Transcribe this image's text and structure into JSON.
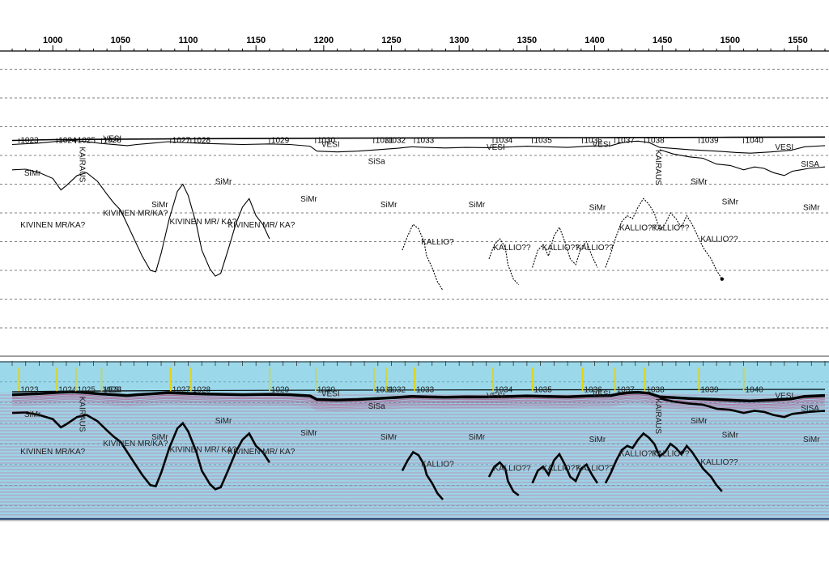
{
  "chart_data": {
    "type": "line",
    "title": "",
    "xlabel": "",
    "ylabel": "",
    "xlim": [
      970,
      1570
    ],
    "x_ticks": [
      1000,
      1050,
      1100,
      1150,
      1200,
      1250,
      1300,
      1350,
      1400,
      1450,
      1500,
      1550
    ],
    "x_tick_labels": [
      "1000",
      "1050",
      "1100",
      "1150",
      "1200",
      "1250",
      "1300",
      "1350",
      "1400",
      "1450",
      "1500",
      "1550"
    ],
    "grid": "horizontal dashed",
    "colors": {
      "line": "#000000",
      "grid": "#555555",
      "seismic_bg": "#9ad8ea",
      "marker": "#e8d400",
      "reflector": "#b0306a"
    },
    "fix_points": [
      {
        "x": 975,
        "label": "1023"
      },
      {
        "x": 1003,
        "label": "1024"
      },
      {
        "x": 1017,
        "label": "1025"
      },
      {
        "x": 1036,
        "label": "1026"
      },
      {
        "x": 1087,
        "label": "1027"
      },
      {
        "x": 1102,
        "label": "1028"
      },
      {
        "x": 1160,
        "label": "1029"
      },
      {
        "x": 1194,
        "label": "1030"
      },
      {
        "x": 1237,
        "label": "1031"
      },
      {
        "x": 1246,
        "label": "1032"
      },
      {
        "x": 1267,
        "label": "1033"
      },
      {
        "x": 1325,
        "label": "1034"
      },
      {
        "x": 1354,
        "label": "1035"
      },
      {
        "x": 1391,
        "label": "1036"
      },
      {
        "x": 1415,
        "label": "1037"
      },
      {
        "x": 1437,
        "label": "1038"
      },
      {
        "x": 1477,
        "label": "1039"
      },
      {
        "x": 1510,
        "label": "1040"
      }
    ],
    "annotations": [
      {
        "x": 985,
        "row": 4.7,
        "text": "SiMr"
      },
      {
        "x": 1020,
        "row": 3.7,
        "text": "KAIRAUS",
        "vertical": true
      },
      {
        "x": 1044,
        "row": 3.5,
        "text": "VESI"
      },
      {
        "x": 1079,
        "row": 5.8,
        "text": "SiMr"
      },
      {
        "x": 1000,
        "row": 6.5,
        "text": "KIVINEN MR/KA?"
      },
      {
        "x": 1061,
        "row": 6.1,
        "text": "KIVINEN MR/KA?"
      },
      {
        "x": 1111,
        "row": 6.4,
        "text": "KIVINEN MR/ KA?"
      },
      {
        "x": 1126,
        "row": 5.0,
        "text": "SiMr"
      },
      {
        "x": 1154,
        "row": 6.5,
        "text": "KIVINEN MR/ KA?"
      },
      {
        "x": 1189,
        "row": 5.6,
        "text": "SiMr"
      },
      {
        "x": 1205,
        "row": 3.7,
        "text": "VESI"
      },
      {
        "x": 1239,
        "row": 4.3,
        "text": "SiSa"
      },
      {
        "x": 1248,
        "row": 5.8,
        "text": "SiMr"
      },
      {
        "x": 1327,
        "row": 3.8,
        "text": "VESI"
      },
      {
        "x": 1313,
        "row": 5.8,
        "text": "SiMr"
      },
      {
        "x": 1284,
        "row": 7.1,
        "text": "KALLIO?"
      },
      {
        "x": 1339,
        "row": 7.3,
        "text": "KALLIO??"
      },
      {
        "x": 1375,
        "row": 7.3,
        "text": "KALLIO??"
      },
      {
        "x": 1400,
        "row": 7.3,
        "text": "KALLIO??"
      },
      {
        "x": 1405,
        "row": 3.7,
        "text": "VESI"
      },
      {
        "x": 1402,
        "row": 5.9,
        "text": "SiMr"
      },
      {
        "x": 1445,
        "row": 3.8,
        "text": "KAIRAUS",
        "vertical": true
      },
      {
        "x": 1432,
        "row": 6.6,
        "text": "KALLIO??"
      },
      {
        "x": 1456,
        "row": 6.6,
        "text": "KALLIO??"
      },
      {
        "x": 1477,
        "row": 5.0,
        "text": "SiMr"
      },
      {
        "x": 1492,
        "row": 7.0,
        "text": "KALLIO??"
      },
      {
        "x": 1500,
        "row": 5.7,
        "text": "SiMr"
      },
      {
        "x": 1540,
        "row": 3.8,
        "text": "VESI"
      },
      {
        "x": 1559,
        "row": 4.4,
        "text": "SISA"
      },
      {
        "x": 1560,
        "row": 5.9,
        "text": "SiMr"
      }
    ],
    "series": [
      {
        "id": "surface",
        "points": [
          [
            970,
            3.48
          ],
          [
            1000,
            3.45
          ],
          [
            1100,
            3.42
          ],
          [
            1200,
            3.4
          ],
          [
            1300,
            3.39
          ],
          [
            1400,
            3.38
          ],
          [
            1500,
            3.37
          ],
          [
            1570,
            3.36
          ]
        ]
      },
      {
        "id": "seabed",
        "points": [
          [
            970,
            3.62
          ],
          [
            990,
            3.57
          ],
          [
            1005,
            3.5
          ],
          [
            1015,
            3.48
          ],
          [
            1025,
            3.52
          ],
          [
            1035,
            3.58
          ],
          [
            1048,
            3.63
          ],
          [
            1055,
            3.66
          ],
          [
            1062,
            3.62
          ],
          [
            1072,
            3.58
          ],
          [
            1085,
            3.52
          ],
          [
            1095,
            3.55
          ],
          [
            1110,
            3.58
          ],
          [
            1125,
            3.6
          ],
          [
            1140,
            3.62
          ],
          [
            1160,
            3.6
          ],
          [
            1175,
            3.62
          ],
          [
            1190,
            3.68
          ],
          [
            1195,
            3.85
          ],
          [
            1210,
            3.88
          ],
          [
            1225,
            3.85
          ],
          [
            1240,
            3.8
          ],
          [
            1255,
            3.75
          ],
          [
            1265,
            3.7
          ],
          [
            1275,
            3.72
          ],
          [
            1290,
            3.74
          ],
          [
            1305,
            3.72
          ],
          [
            1320,
            3.73
          ],
          [
            1335,
            3.71
          ],
          [
            1350,
            3.68
          ],
          [
            1365,
            3.7
          ],
          [
            1380,
            3.72
          ],
          [
            1395,
            3.68
          ],
          [
            1412,
            3.66
          ],
          [
            1418,
            3.58
          ],
          [
            1425,
            3.52
          ],
          [
            1432,
            3.5
          ],
          [
            1440,
            3.55
          ],
          [
            1448,
            3.72
          ],
          [
            1470,
            3.8
          ],
          [
            1490,
            3.85
          ],
          [
            1505,
            3.9
          ],
          [
            1515,
            3.92
          ],
          [
            1530,
            3.88
          ],
          [
            1545,
            3.82
          ],
          [
            1555,
            3.7
          ],
          [
            1570,
            3.66
          ]
        ]
      },
      {
        "id": "silt_base_west",
        "points": [
          [
            970,
            4.5
          ],
          [
            980,
            4.48
          ],
          [
            990,
            4.6
          ],
          [
            1000,
            4.8
          ],
          [
            1006,
            5.2
          ],
          [
            1010,
            5.05
          ],
          [
            1018,
            4.7
          ],
          [
            1025,
            4.6
          ],
          [
            1033,
            4.9
          ],
          [
            1040,
            5.35
          ],
          [
            1045,
            5.65
          ],
          [
            1050,
            5.9
          ],
          [
            1054,
            6.3
          ],
          [
            1060,
            6.9
          ],
          [
            1066,
            7.5
          ],
          [
            1072,
            8.0
          ],
          [
            1076,
            8.05
          ],
          [
            1080,
            7.4
          ],
          [
            1086,
            6.2
          ],
          [
            1092,
            5.25
          ],
          [
            1096,
            5.0
          ],
          [
            1100,
            5.4
          ],
          [
            1106,
            6.4
          ],
          [
            1110,
            7.3
          ],
          [
            1116,
            7.95
          ],
          [
            1120,
            8.2
          ],
          [
            1124,
            8.1
          ],
          [
            1130,
            7.2
          ],
          [
            1135,
            6.4
          ],
          [
            1140,
            5.8
          ],
          [
            1145,
            5.5
          ],
          [
            1150,
            6.1
          ],
          [
            1155,
            6.4
          ],
          [
            1160,
            6.9
          ]
        ]
      },
      {
        "id": "bedrock_1",
        "points": [
          [
            1258,
            7.3
          ],
          [
            1262,
            6.8
          ],
          [
            1266,
            6.4
          ],
          [
            1270,
            6.55
          ],
          [
            1274,
            7.0
          ],
          [
            1276,
            7.5
          ],
          [
            1280,
            7.9
          ],
          [
            1284,
            8.4
          ],
          [
            1288,
            8.7
          ]
        ]
      },
      {
        "id": "bedrock_2",
        "points": [
          [
            1322,
            7.6
          ],
          [
            1326,
            7.1
          ],
          [
            1330,
            6.9
          ],
          [
            1334,
            7.2
          ],
          [
            1336,
            7.8
          ],
          [
            1340,
            8.3
          ],
          [
            1344,
            8.5
          ]
        ]
      },
      {
        "id": "bedrock_3",
        "points": [
          [
            1354,
            7.9
          ],
          [
            1358,
            7.3
          ],
          [
            1362,
            7.1
          ],
          [
            1366,
            7.5
          ],
          [
            1370,
            6.8
          ],
          [
            1374,
            6.5
          ],
          [
            1378,
            7.0
          ],
          [
            1382,
            7.6
          ],
          [
            1386,
            7.8
          ],
          [
            1390,
            7.2
          ],
          [
            1394,
            7.0
          ],
          [
            1398,
            7.5
          ],
          [
            1402,
            7.9
          ]
        ]
      },
      {
        "id": "bedrock_4",
        "points": [
          [
            1408,
            7.9
          ],
          [
            1412,
            7.4
          ],
          [
            1416,
            6.8
          ],
          [
            1420,
            6.3
          ],
          [
            1424,
            6.1
          ],
          [
            1428,
            6.2
          ],
          [
            1432,
            5.8
          ],
          [
            1436,
            5.5
          ],
          [
            1440,
            5.7
          ],
          [
            1444,
            6.0
          ],
          [
            1448,
            6.6
          ],
          [
            1452,
            6.4
          ],
          [
            1456,
            6.0
          ],
          [
            1460,
            6.2
          ],
          [
            1464,
            6.5
          ],
          [
            1468,
            6.1
          ],
          [
            1472,
            6.4
          ],
          [
            1476,
            6.8
          ],
          [
            1480,
            7.2
          ],
          [
            1486,
            7.6
          ],
          [
            1490,
            8.0
          ],
          [
            1494,
            8.3
          ]
        ]
      },
      {
        "id": "silt_base_east",
        "points": [
          [
            1448,
            3.8
          ],
          [
            1458,
            3.95
          ],
          [
            1470,
            4.05
          ],
          [
            1480,
            4.1
          ],
          [
            1490,
            4.3
          ],
          [
            1500,
            4.35
          ],
          [
            1510,
            4.5
          ],
          [
            1518,
            4.4
          ],
          [
            1525,
            4.45
          ],
          [
            1532,
            4.6
          ],
          [
            1540,
            4.7
          ],
          [
            1546,
            4.55
          ],
          [
            1552,
            4.5
          ],
          [
            1558,
            4.45
          ],
          [
            1570,
            4.4
          ]
        ]
      }
    ]
  }
}
